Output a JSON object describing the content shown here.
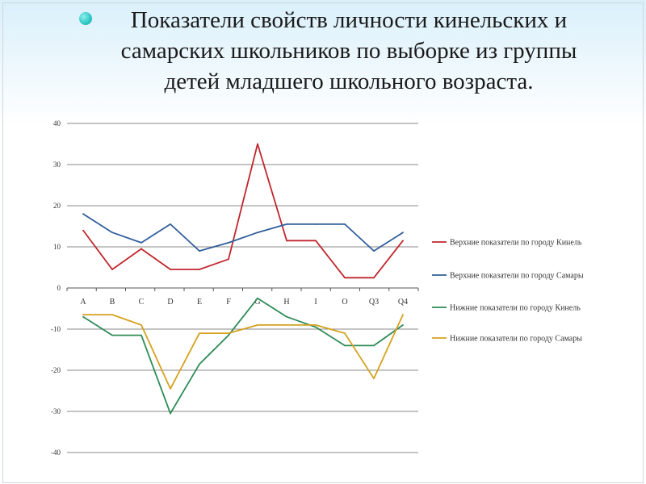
{
  "slide": {
    "title": "Показатели свойств личности кинельских и самарских школьников по выборке из группы детей младшего школьного возраста.",
    "accent_color": "#2cc6c4"
  },
  "chart_data": {
    "type": "line",
    "title": "",
    "xlabel": "",
    "ylabel": "",
    "categories": [
      "A",
      "B",
      "C",
      "D",
      "E",
      "F",
      "G",
      "H",
      "I",
      "O",
      "Q3",
      "Q4"
    ],
    "yticks": [
      "40",
      "30",
      "20",
      "10",
      "0",
      "-10",
      "-20",
      "-30",
      "-40"
    ],
    "ylim": [
      -40,
      40
    ],
    "grid": true,
    "legend_position": "right",
    "series": [
      {
        "name": "Верхние показатели по городу Кинель",
        "color": "#c0262d",
        "values": [
          14,
          4.5,
          9.5,
          4.5,
          4.5,
          7,
          35,
          11.5,
          11.5,
          2.5,
          2.5,
          11.5
        ]
      },
      {
        "name": "Верхние показатели по городу Самары",
        "color": "#2f5e9c",
        "values": [
          18,
          13.5,
          11,
          15.5,
          9,
          11,
          13.5,
          15.5,
          15.5,
          15.5,
          9,
          13.5
        ]
      },
      {
        "name": "Нижние показатели по городу Кинель",
        "color": "#2e8b57",
        "values": [
          -7,
          -11.5,
          -11.5,
          -30.5,
          -18.5,
          -11.5,
          -2.5,
          -7,
          -9.5,
          -14,
          -14,
          -9
        ]
      },
      {
        "name": "Нижние показатели по городу Самары",
        "color": "#d4a21e",
        "values": [
          -6.5,
          -6.5,
          -9,
          -24.5,
          -11,
          -11,
          -9,
          -9,
          -9,
          -11,
          -22,
          -6.5
        ]
      }
    ]
  }
}
